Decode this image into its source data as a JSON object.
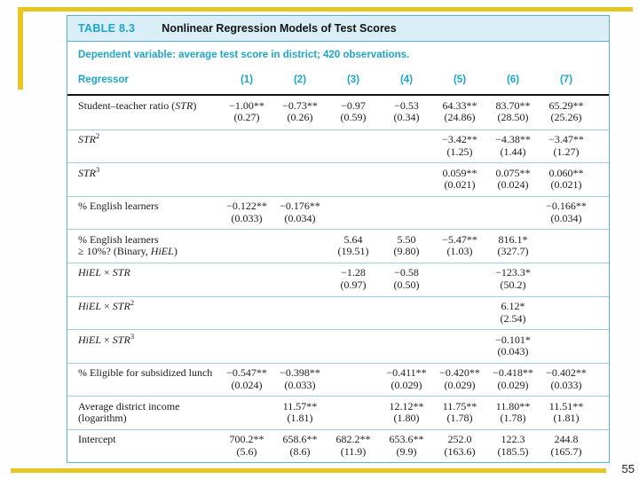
{
  "page": {
    "number": "55"
  },
  "colors": {
    "accent_gold": "#E7C522",
    "teal_text": "#1CA5CC",
    "band_background": "#D9EEF6",
    "table_border": "#57B5D2",
    "row_rule": "#9CCFE0"
  },
  "table": {
    "tag": "TABLE 8.3",
    "title": "Nonlinear Regression Models of Test Scores",
    "subtitle": "Dependent variable: average test score in district; 420 observations.",
    "header": {
      "regressor": "Regressor",
      "columns": [
        "(1)",
        "(2)",
        "(3)",
        "(4)",
        "(5)",
        "(6)",
        "(7)"
      ]
    },
    "rows": [
      {
        "label": [
          [
            [
              "n",
              "Student–teacher ratio ("
            ],
            [
              "i",
              "STR"
            ],
            [
              "n",
              ")"
            ]
          ]
        ],
        "cells": [
          {
            "v": "−1.00**",
            "se": "(0.27)"
          },
          {
            "v": "−0.73**",
            "se": "(0.26)"
          },
          {
            "v": "−0.97",
            "se": "(0.59)"
          },
          {
            "v": "−0.53",
            "se": "(0.34)"
          },
          {
            "v": "64.33**",
            "se": "(24.86)"
          },
          {
            "v": "83.70**",
            "se": "(28.50)"
          },
          {
            "v": "65.29**",
            "se": "(25.26)"
          }
        ]
      },
      {
        "label": [
          [
            [
              "i",
              "STR"
            ],
            [
              "sup",
              "2"
            ]
          ]
        ],
        "cells": [
          null,
          null,
          null,
          null,
          {
            "v": "−3.42**",
            "se": "(1.25)"
          },
          {
            "v": "−4.38**",
            "se": "(1.44)"
          },
          {
            "v": "−3.47**",
            "se": "(1.27)"
          }
        ]
      },
      {
        "label": [
          [
            [
              "i",
              "STR"
            ],
            [
              "sup",
              "3"
            ]
          ]
        ],
        "cells": [
          null,
          null,
          null,
          null,
          {
            "v": "0.059**",
            "se": "(0.021)"
          },
          {
            "v": "0.075**",
            "se": "(0.024)"
          },
          {
            "v": "0.060**",
            "se": "(0.021)"
          }
        ]
      },
      {
        "label": [
          [
            [
              "n",
              "% English learners"
            ]
          ]
        ],
        "cells": [
          {
            "v": "−0.122**",
            "se": "(0.033)"
          },
          {
            "v": "−0.176**",
            "se": "(0.034)"
          },
          null,
          null,
          null,
          null,
          {
            "v": "−0.166**",
            "se": "(0.034)"
          }
        ]
      },
      {
        "label": [
          [
            [
              "n",
              "% English learners"
            ]
          ],
          [
            [
              "n",
              "≥ 10%? (Binary, "
            ],
            [
              "i",
              "HiEL"
            ],
            [
              "n",
              ")"
            ]
          ]
        ],
        "cells": [
          null,
          null,
          {
            "v": "5.64",
            "se": "(19.51)"
          },
          {
            "v": "5.50",
            "se": "(9.80)"
          },
          {
            "v": "−5.47**",
            "se": "(1.03)"
          },
          {
            "v": "816.1*",
            "se": "(327.7)"
          },
          null
        ]
      },
      {
        "label": [
          [
            [
              "i",
              "HiEL"
            ],
            [
              "n",
              " × "
            ],
            [
              "i",
              "STR"
            ]
          ]
        ],
        "cells": [
          null,
          null,
          {
            "v": "−1.28",
            "se": "(0.97)"
          },
          {
            "v": "−0.58",
            "se": "(0.50)"
          },
          null,
          {
            "v": "−123.3*",
            "se": "(50.2)"
          },
          null
        ]
      },
      {
        "label": [
          [
            [
              "i",
              "HiEL"
            ],
            [
              "n",
              " × "
            ],
            [
              "i",
              "STR"
            ],
            [
              "sup",
              "2"
            ]
          ]
        ],
        "cells": [
          null,
          null,
          null,
          null,
          null,
          {
            "v": "6.12*",
            "se": "(2.54)"
          },
          null
        ]
      },
      {
        "label": [
          [
            [
              "i",
              "HiEL"
            ],
            [
              "n",
              " × "
            ],
            [
              "i",
              "STR"
            ],
            [
              "sup",
              "3"
            ]
          ]
        ],
        "cells": [
          null,
          null,
          null,
          null,
          null,
          {
            "v": "−0.101*",
            "se": "(0.043)"
          },
          null
        ]
      },
      {
        "label": [
          [
            [
              "n",
              "% Eligible for subsidized lunch"
            ]
          ]
        ],
        "cells": [
          {
            "v": "−0.547**",
            "se": "(0.024)"
          },
          {
            "v": "−0.398**",
            "se": "(0.033)"
          },
          null,
          {
            "v": "−0.411**",
            "se": "(0.029)"
          },
          {
            "v": "−0.420**",
            "se": "(0.029)"
          },
          {
            "v": "−0.418**",
            "se": "(0.029)"
          },
          {
            "v": "−0.402**",
            "se": "(0.033)"
          }
        ]
      },
      {
        "label": [
          [
            [
              "n",
              "Average district income"
            ]
          ],
          [
            [
              "n",
              "(logarithm)"
            ]
          ]
        ],
        "cells": [
          null,
          {
            "v": "11.57**",
            "se": "(1.81)"
          },
          null,
          {
            "v": "12.12**",
            "se": "(1.80)"
          },
          {
            "v": "11.75**",
            "se": "(1.78)"
          },
          {
            "v": "11.80**",
            "se": "(1.78)"
          },
          {
            "v": "11.51**",
            "se": "(1.81)"
          }
        ]
      },
      {
        "label": [
          [
            [
              "n",
              "Intercept"
            ]
          ]
        ],
        "cells": [
          {
            "v": "700.2**",
            "se": "(5.6)"
          },
          {
            "v": "658.6**",
            "se": "(8.6)"
          },
          {
            "v": "682.2**",
            "se": "(11.9)"
          },
          {
            "v": "653.6**",
            "se": "(9.9)"
          },
          {
            "v": "252.0",
            "se": "(163.6)"
          },
          {
            "v": "122.3",
            "se": "(185.5)"
          },
          {
            "v": "244.8",
            "se": "(165.7)"
          }
        ]
      }
    ]
  }
}
